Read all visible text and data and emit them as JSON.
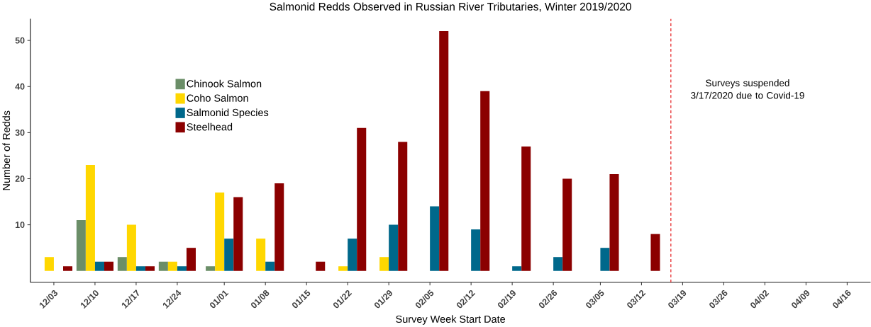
{
  "chart_data": {
    "type": "bar",
    "title": "Salmonid Redds Observed in Russian River Tributaries, Winter 2019/2020",
    "xlabel": "Survey Week Start Date",
    "ylabel": "Number of Redds",
    "x": [
      "2019-12-03",
      "2019-12-10",
      "2019-12-17",
      "2019-12-24",
      "2020-01-01",
      "2020-01-08",
      "2020-01-15",
      "2020-01-22",
      "2020-01-29",
      "2020-02-05",
      "2020-02-12",
      "2020-02-19",
      "2020-02-26",
      "2020-03-05",
      "2020-03-12"
    ],
    "xlim": [
      "2019-11-29",
      "2020-04-20"
    ],
    "xticks": [
      {
        "value": "2019-12-03",
        "label": "12/03"
      },
      {
        "value": "2019-12-10",
        "label": "12/10"
      },
      {
        "value": "2019-12-17",
        "label": "12/17"
      },
      {
        "value": "2019-12-24",
        "label": "12/24"
      },
      {
        "value": "2020-01-01",
        "label": "01/01"
      },
      {
        "value": "2020-01-08",
        "label": "01/08"
      },
      {
        "value": "2020-01-15",
        "label": "01/15"
      },
      {
        "value": "2020-01-22",
        "label": "01/22"
      },
      {
        "value": "2020-01-29",
        "label": "01/29"
      },
      {
        "value": "2020-02-05",
        "label": "02/05"
      },
      {
        "value": "2020-02-12",
        "label": "02/12"
      },
      {
        "value": "2020-02-19",
        "label": "02/19"
      },
      {
        "value": "2020-02-26",
        "label": "02/26"
      },
      {
        "value": "2020-03-05",
        "label": "03/05"
      },
      {
        "value": "2020-03-12",
        "label": "03/12"
      },
      {
        "value": "2020-03-19",
        "label": "03/19"
      },
      {
        "value": "2020-03-26",
        "label": "03/26"
      },
      {
        "value": "2020-04-02",
        "label": "04/02"
      },
      {
        "value": "2020-04-09",
        "label": "04/09"
      },
      {
        "value": "2020-04-16",
        "label": "04/16"
      }
    ],
    "series": [
      {
        "name": "Chinook Salmon",
        "color": "#6b8e68",
        "values": [
          null,
          11,
          3,
          2,
          1,
          null,
          null,
          null,
          null,
          null,
          null,
          null,
          null,
          null,
          null
        ]
      },
      {
        "name": "Coho Salmon",
        "color": "#ffd700",
        "values": [
          3,
          23,
          10,
          2,
          17,
          7,
          null,
          1,
          3,
          null,
          null,
          null,
          null,
          null,
          null
        ]
      },
      {
        "name": "Salmonid Species",
        "color": "#00688b",
        "values": [
          null,
          2,
          1,
          1,
          7,
          2,
          null,
          7,
          10,
          14,
          9,
          1,
          3,
          5,
          null
        ]
      },
      {
        "name": "Steelhead",
        "color": "#8b0000",
        "values": [
          1,
          2,
          1,
          5,
          16,
          19,
          2,
          31,
          28,
          52,
          39,
          27,
          20,
          21,
          8
        ]
      }
    ],
    "ylim": [
      -2.5,
      54.7
    ],
    "yticks": [
      10,
      20,
      30,
      40,
      50
    ],
    "ref_lines": [
      {
        "axis": "x",
        "value": "2020-03-17",
        "label": "Surveys suspended 3/17/2020 due to Covid-19",
        "color": "#e41a1c",
        "line_style": "dashed"
      }
    ],
    "grid": false,
    "legend": "top left"
  }
}
